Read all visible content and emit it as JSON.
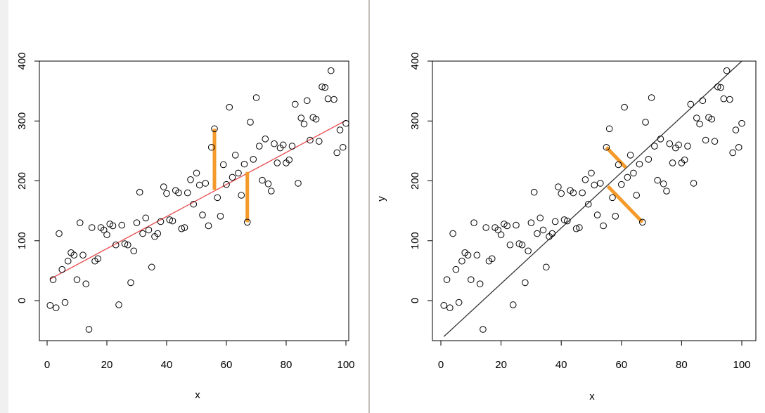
{
  "colors": {
    "background": "#ffffff",
    "side_strip": "#f0f0f0",
    "divider": "#b0a9a0",
    "points": "#000000",
    "residual": "#f49a2a",
    "left_fit_line": "#e8474a",
    "right_fit_line": "#333333"
  },
  "chart_data": [
    {
      "type": "scatter",
      "panel": "left",
      "xlabel": "x",
      "ylabel": "",
      "xlim": [
        0,
        100
      ],
      "ylim": [
        -50,
        400
      ],
      "x_ticks": [
        "0",
        "20",
        "40",
        "60",
        "80",
        "100"
      ],
      "y_ticks": [
        "0",
        "100",
        "200",
        "300",
        "400"
      ],
      "grid": false,
      "points": [
        [
          1,
          -8
        ],
        [
          2,
          35
        ],
        [
          3,
          -12
        ],
        [
          4,
          112
        ],
        [
          5,
          52
        ],
        [
          6,
          -3
        ],
        [
          7,
          66
        ],
        [
          8,
          80
        ],
        [
          9,
          76
        ],
        [
          10,
          35
        ],
        [
          11,
          130
        ],
        [
          12,
          76
        ],
        [
          13,
          28
        ],
        [
          14,
          -48
        ],
        [
          15,
          122
        ],
        [
          16,
          66
        ],
        [
          17,
          70
        ],
        [
          18,
          122
        ],
        [
          19,
          118
        ],
        [
          20,
          110
        ],
        [
          21,
          128
        ],
        [
          22,
          125
        ],
        [
          23,
          93
        ],
        [
          24,
          -7
        ],
        [
          25,
          126
        ],
        [
          26,
          95
        ],
        [
          27,
          93
        ],
        [
          28,
          30
        ],
        [
          29,
          83
        ],
        [
          30,
          130
        ],
        [
          31,
          181
        ],
        [
          32,
          112
        ],
        [
          33,
          138
        ],
        [
          34,
          118
        ],
        [
          35,
          56
        ],
        [
          36,
          107
        ],
        [
          37,
          112
        ],
        [
          38,
          132
        ],
        [
          39,
          190
        ],
        [
          40,
          179
        ],
        [
          41,
          135
        ],
        [
          42,
          133
        ],
        [
          43,
          184
        ],
        [
          44,
          180
        ],
        [
          45,
          120
        ],
        [
          46,
          122
        ],
        [
          47,
          180
        ],
        [
          48,
          202
        ],
        [
          49,
          161
        ],
        [
          50,
          213
        ],
        [
          51,
          193
        ],
        [
          52,
          143
        ],
        [
          53,
          196
        ],
        [
          54,
          125
        ],
        [
          55,
          256
        ],
        [
          56,
          287
        ],
        [
          57,
          172
        ],
        [
          58,
          141
        ],
        [
          59,
          227
        ],
        [
          60,
          194
        ],
        [
          61,
          323
        ],
        [
          62,
          206
        ],
        [
          63,
          243
        ],
        [
          64,
          213
        ],
        [
          65,
          176
        ],
        [
          66,
          228
        ],
        [
          67,
          131
        ],
        [
          68,
          298
        ],
        [
          69,
          236
        ],
        [
          70,
          339
        ],
        [
          71,
          258
        ],
        [
          72,
          201
        ],
        [
          73,
          270
        ],
        [
          74,
          195
        ],
        [
          75,
          183
        ],
        [
          76,
          262
        ],
        [
          77,
          230
        ],
        [
          78,
          255
        ],
        [
          79,
          260
        ],
        [
          80,
          230
        ],
        [
          81,
          235
        ],
        [
          82,
          258
        ],
        [
          83,
          328
        ],
        [
          84,
          196
        ],
        [
          85,
          305
        ],
        [
          86,
          295
        ],
        [
          87,
          334
        ],
        [
          88,
          268
        ],
        [
          89,
          306
        ],
        [
          90,
          303
        ],
        [
          91,
          266
        ],
        [
          92,
          357
        ],
        [
          93,
          356
        ],
        [
          94,
          337
        ],
        [
          95,
          384
        ],
        [
          96,
          336
        ],
        [
          97,
          247
        ],
        [
          98,
          285
        ],
        [
          99,
          256
        ],
        [
          100,
          296
        ]
      ],
      "fit_line": {
        "x": [
          1,
          100
        ],
        "y": [
          36,
          301
        ]
      },
      "residuals": [
        {
          "x": 56,
          "from": 287,
          "to": 185
        },
        {
          "x": 67,
          "from": 131,
          "to": 215
        }
      ]
    },
    {
      "type": "scatter",
      "panel": "right",
      "xlabel": "x",
      "ylabel": "y",
      "xlim": [
        0,
        100
      ],
      "ylim": [
        -50,
        400
      ],
      "x_ticks": [
        "0",
        "20",
        "40",
        "60",
        "80",
        "100"
      ],
      "y_ticks": [
        "0",
        "100",
        "200",
        "300",
        "400"
      ],
      "grid": false,
      "points": [
        [
          1,
          -8
        ],
        [
          2,
          35
        ],
        [
          3,
          -12
        ],
        [
          4,
          112
        ],
        [
          5,
          52
        ],
        [
          6,
          -3
        ],
        [
          7,
          66
        ],
        [
          8,
          80
        ],
        [
          9,
          76
        ],
        [
          10,
          35
        ],
        [
          11,
          130
        ],
        [
          12,
          76
        ],
        [
          13,
          28
        ],
        [
          14,
          -48
        ],
        [
          15,
          122
        ],
        [
          16,
          66
        ],
        [
          17,
          70
        ],
        [
          18,
          122
        ],
        [
          19,
          118
        ],
        [
          20,
          110
        ],
        [
          21,
          128
        ],
        [
          22,
          125
        ],
        [
          23,
          93
        ],
        [
          24,
          -7
        ],
        [
          25,
          126
        ],
        [
          26,
          95
        ],
        [
          27,
          93
        ],
        [
          28,
          30
        ],
        [
          29,
          83
        ],
        [
          30,
          130
        ],
        [
          31,
          181
        ],
        [
          32,
          112
        ],
        [
          33,
          138
        ],
        [
          34,
          118
        ],
        [
          35,
          56
        ],
        [
          36,
          107
        ],
        [
          37,
          112
        ],
        [
          38,
          132
        ],
        [
          39,
          190
        ],
        [
          40,
          179
        ],
        [
          41,
          135
        ],
        [
          42,
          133
        ],
        [
          43,
          184
        ],
        [
          44,
          180
        ],
        [
          45,
          120
        ],
        [
          46,
          122
        ],
        [
          47,
          180
        ],
        [
          48,
          202
        ],
        [
          49,
          161
        ],
        [
          50,
          213
        ],
        [
          51,
          193
        ],
        [
          52,
          143
        ],
        [
          53,
          196
        ],
        [
          54,
          125
        ],
        [
          55,
          256
        ],
        [
          56,
          287
        ],
        [
          57,
          172
        ],
        [
          58,
          141
        ],
        [
          59,
          227
        ],
        [
          60,
          194
        ],
        [
          61,
          323
        ],
        [
          62,
          206
        ],
        [
          63,
          243
        ],
        [
          64,
          213
        ],
        [
          65,
          176
        ],
        [
          66,
          228
        ],
        [
          67,
          131
        ],
        [
          68,
          298
        ],
        [
          69,
          236
        ],
        [
          70,
          339
        ],
        [
          71,
          258
        ],
        [
          72,
          201
        ],
        [
          73,
          270
        ],
        [
          74,
          195
        ],
        [
          75,
          183
        ],
        [
          76,
          262
        ],
        [
          77,
          230
        ],
        [
          78,
          255
        ],
        [
          79,
          260
        ],
        [
          80,
          230
        ],
        [
          81,
          235
        ],
        [
          82,
          258
        ],
        [
          83,
          328
        ],
        [
          84,
          196
        ],
        [
          85,
          305
        ],
        [
          86,
          295
        ],
        [
          87,
          334
        ],
        [
          88,
          268
        ],
        [
          89,
          306
        ],
        [
          90,
          303
        ],
        [
          91,
          266
        ],
        [
          92,
          357
        ],
        [
          93,
          356
        ],
        [
          94,
          337
        ],
        [
          95,
          384
        ],
        [
          96,
          336
        ],
        [
          97,
          247
        ],
        [
          98,
          285
        ],
        [
          99,
          256
        ],
        [
          100,
          296
        ]
      ],
      "fit_line": {
        "x": [
          1,
          100
        ],
        "y": [
          -60,
          400
        ]
      },
      "residuals": [
        {
          "x0": 55,
          "y0": 256,
          "x1": 61.5,
          "y1": 222
        },
        {
          "x0": 67,
          "y0": 131,
          "x1": 55.5,
          "y1": 191
        }
      ]
    }
  ]
}
